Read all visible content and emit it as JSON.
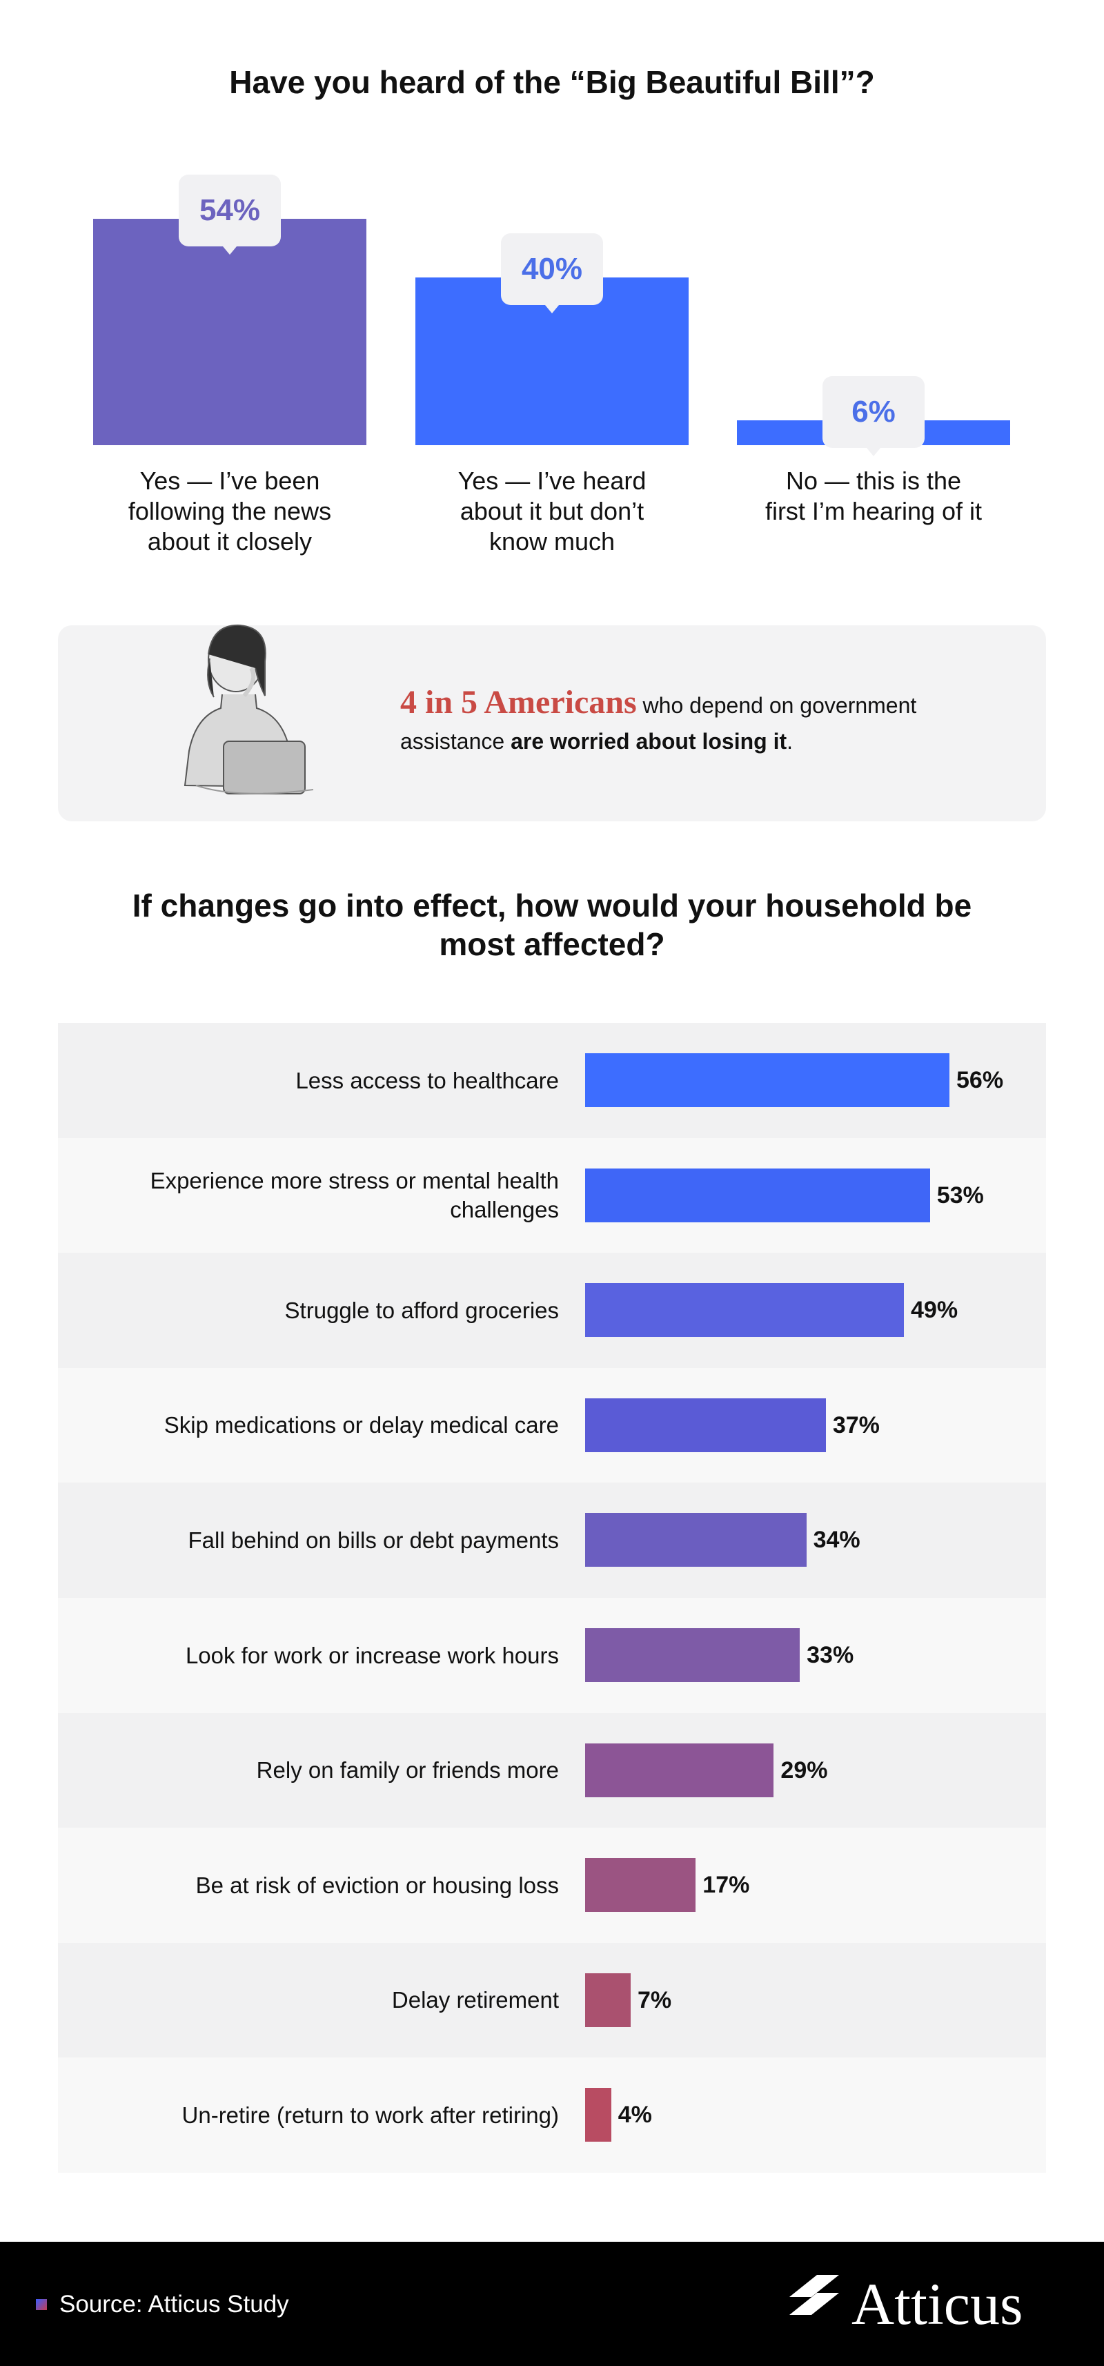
{
  "chart_data": [
    {
      "type": "bar",
      "title": "Have you heard of the “Big Beautiful Bill”?",
      "categories": [
        "Yes — I’ve been following the news about it closely",
        "Yes — I’ve heard about it but don’t know much",
        "No — this is the first I’m hearing of it"
      ],
      "values": [
        54,
        40,
        6
      ],
      "value_labels": [
        "54%",
        "40%",
        "6%"
      ],
      "colors": [
        "#6c63bf",
        "#3d6dff",
        "#3d6dff"
      ],
      "label_colors": [
        "#6c63bf",
        "#4b6fe8",
        "#4b6fe8"
      ],
      "ylim": [
        0,
        54
      ],
      "grid": false
    },
    {
      "type": "bar",
      "orientation": "horizontal",
      "title": "If changes go into effect, how would your household be most affected?",
      "categories": [
        "Less access to healthcare",
        "Experience more stress or mental health challenges",
        "Struggle to afford groceries",
        "Skip medications or delay medical care",
        "Fall behind on bills or debt payments",
        "Look for work or increase work hours",
        "Rely on family or friends more",
        "Be at risk of eviction or housing loss",
        "Delay retirement",
        "Un-retire (return to work after retiring)"
      ],
      "values": [
        56,
        53,
        49,
        37,
        34,
        33,
        29,
        17,
        7,
        4
      ],
      "value_labels": [
        "56%",
        "53%",
        "49%",
        "37%",
        "34%",
        "33%",
        "29%",
        "17%",
        "7%",
        "4%"
      ],
      "colors": [
        "#3d6dff",
        "#3f66f7",
        "#5962e0",
        "#5a5bd6",
        "#6b5ec0",
        "#7e5ba7",
        "#8c5596",
        "#9b5482",
        "#aa516f",
        "#b84c62"
      ],
      "row_backgrounds": [
        "#f1f1f2",
        "#f8f8f8"
      ],
      "xlim": [
        0,
        56
      ],
      "grid": false
    }
  ],
  "callout": {
    "highlight": "4 in 5 Americans",
    "text_middle": "who depend on government assistance",
    "text_bold": "are worried about losing it",
    "text_end": "."
  },
  "footer": {
    "source": "Source: Atticus Study",
    "brand": "Atticus"
  }
}
